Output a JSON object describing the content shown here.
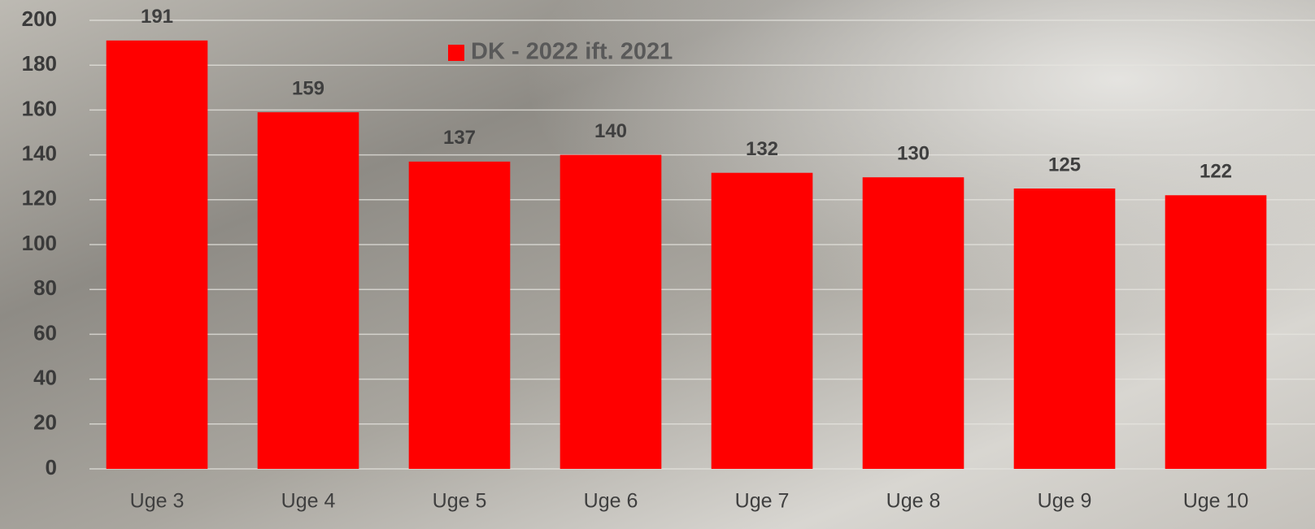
{
  "chart_data": {
    "type": "bar",
    "categories": [
      "Uge 3",
      "Uge 4",
      "Uge 5",
      "Uge 6",
      "Uge 7",
      "Uge 8",
      "Uge 9",
      "Uge 10"
    ],
    "series": [
      {
        "name": "DK - 2022 ift. 2021",
        "color": "#ff0000",
        "values": [
          191,
          159,
          137,
          140,
          132,
          130,
          125,
          122
        ]
      }
    ],
    "ylim": [
      0,
      200
    ],
    "yticks": [
      0,
      20,
      40,
      60,
      80,
      100,
      120,
      140,
      160,
      180,
      200
    ],
    "grid": true,
    "legend": "top",
    "data_labels": true
  }
}
